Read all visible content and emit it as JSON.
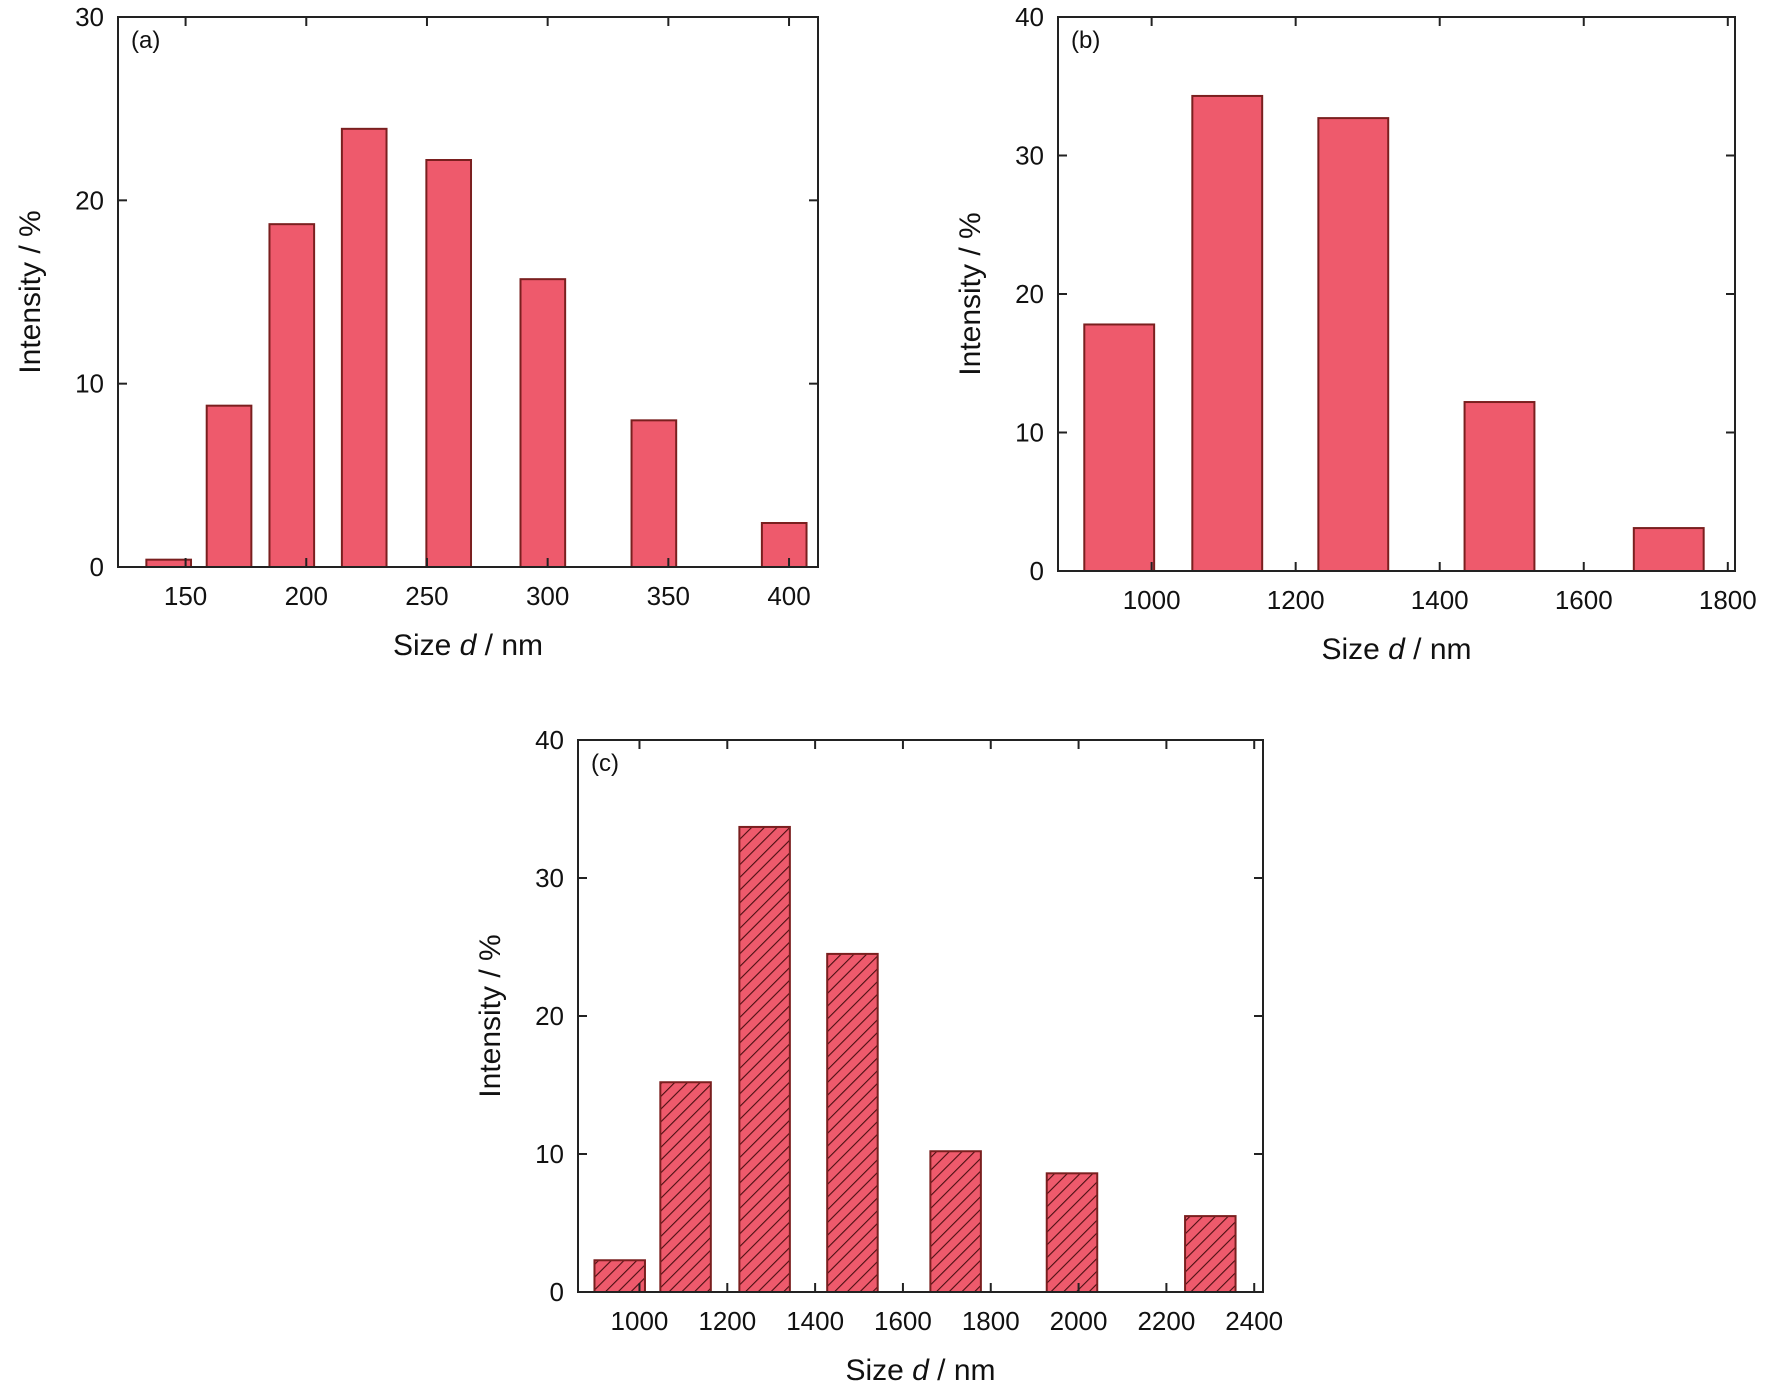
{
  "colors": {
    "bar_fill": "#ee5a6c",
    "bar_stroke": "#7a1f1f",
    "hatch_line": "#4a0f12",
    "axis": "#222222"
  },
  "chart_data": [
    {
      "type": "bar",
      "panel_label": "(a)",
      "xlabel_prefix": "Size ",
      "xlabel_var": "d",
      "xlabel_suffix": " / nm",
      "ylabel": "Intensity / %",
      "xlim": [
        122,
        412
      ],
      "ylim": [
        0,
        30
      ],
      "xticks": [
        150,
        200,
        250,
        300,
        350,
        400
      ],
      "yticks": [
        0,
        10,
        20,
        30
      ],
      "bar_width": 18.5,
      "hatched": false,
      "bars": [
        {
          "x": 143,
          "value": 0.4
        },
        {
          "x": 168,
          "value": 8.8
        },
        {
          "x": 194,
          "value": 18.7
        },
        {
          "x": 224,
          "value": 23.9
        },
        {
          "x": 259,
          "value": 22.2
        },
        {
          "x": 298,
          "value": 15.7
        },
        {
          "x": 344,
          "value": 8.0
        },
        {
          "x": 398,
          "value": 2.4
        }
      ]
    },
    {
      "type": "bar",
      "panel_label": "(b)",
      "xlabel_prefix": "Size ",
      "xlabel_var": "d",
      "xlabel_suffix": " / nm",
      "ylabel": "Intensity / %",
      "xlim": [
        870,
        1810
      ],
      "ylim": [
        0,
        40
      ],
      "xticks": [
        1000,
        1200,
        1400,
        1600,
        1800
      ],
      "yticks": [
        0,
        10,
        20,
        30,
        40
      ],
      "bar_width": 97,
      "hatched": false,
      "bars": [
        {
          "x": 955,
          "value": 17.8
        },
        {
          "x": 1105,
          "value": 34.3
        },
        {
          "x": 1280,
          "value": 32.7
        },
        {
          "x": 1483,
          "value": 12.2
        },
        {
          "x": 1718,
          "value": 3.1
        }
      ]
    },
    {
      "type": "bar",
      "panel_label": "(c)",
      "xlabel_prefix": "Size ",
      "xlabel_var": "d",
      "xlabel_suffix": " / nm",
      "ylabel": "Intensity / %",
      "xlim": [
        860,
        2420
      ],
      "ylim": [
        0,
        40
      ],
      "xticks": [
        1000,
        1200,
        1400,
        1600,
        1800,
        2000,
        2200,
        2400
      ],
      "yticks": [
        0,
        10,
        20,
        30,
        40
      ],
      "bar_width": 115,
      "hatched": true,
      "bars": [
        {
          "x": 955,
          "value": 2.3
        },
        {
          "x": 1105,
          "value": 15.2
        },
        {
          "x": 1285,
          "value": 33.7
        },
        {
          "x": 1485,
          "value": 24.5
        },
        {
          "x": 1720,
          "value": 10.2
        },
        {
          "x": 1985,
          "value": 8.6
        },
        {
          "x": 2300,
          "value": 5.5
        }
      ]
    }
  ]
}
